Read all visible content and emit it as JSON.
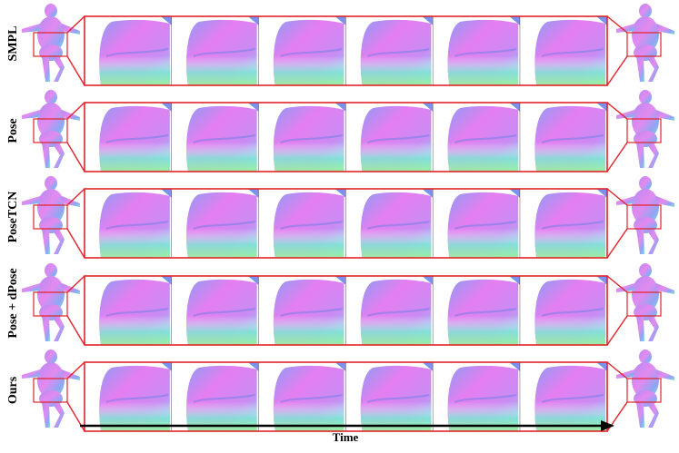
{
  "figure": {
    "rows": [
      {
        "label": "SMPL"
      },
      {
        "label": "Pose"
      },
      {
        "label": "PoseTCN"
      },
      {
        "label": "Pose + dPose"
      },
      {
        "label": "Ours"
      }
    ],
    "frames_per_row": 6,
    "time_axis_label": "Time",
    "colors": {
      "highlight_box": "#e0242a",
      "arrow": "#000000",
      "normal_map_pink": "#e07af0",
      "normal_map_blue": "#7d8bf2",
      "normal_map_cyan": "#7fe0d8",
      "normal_map_green": "#9ee39a"
    },
    "icons": [
      "human-body-render-icon",
      "body-normal-map-crop"
    ]
  }
}
